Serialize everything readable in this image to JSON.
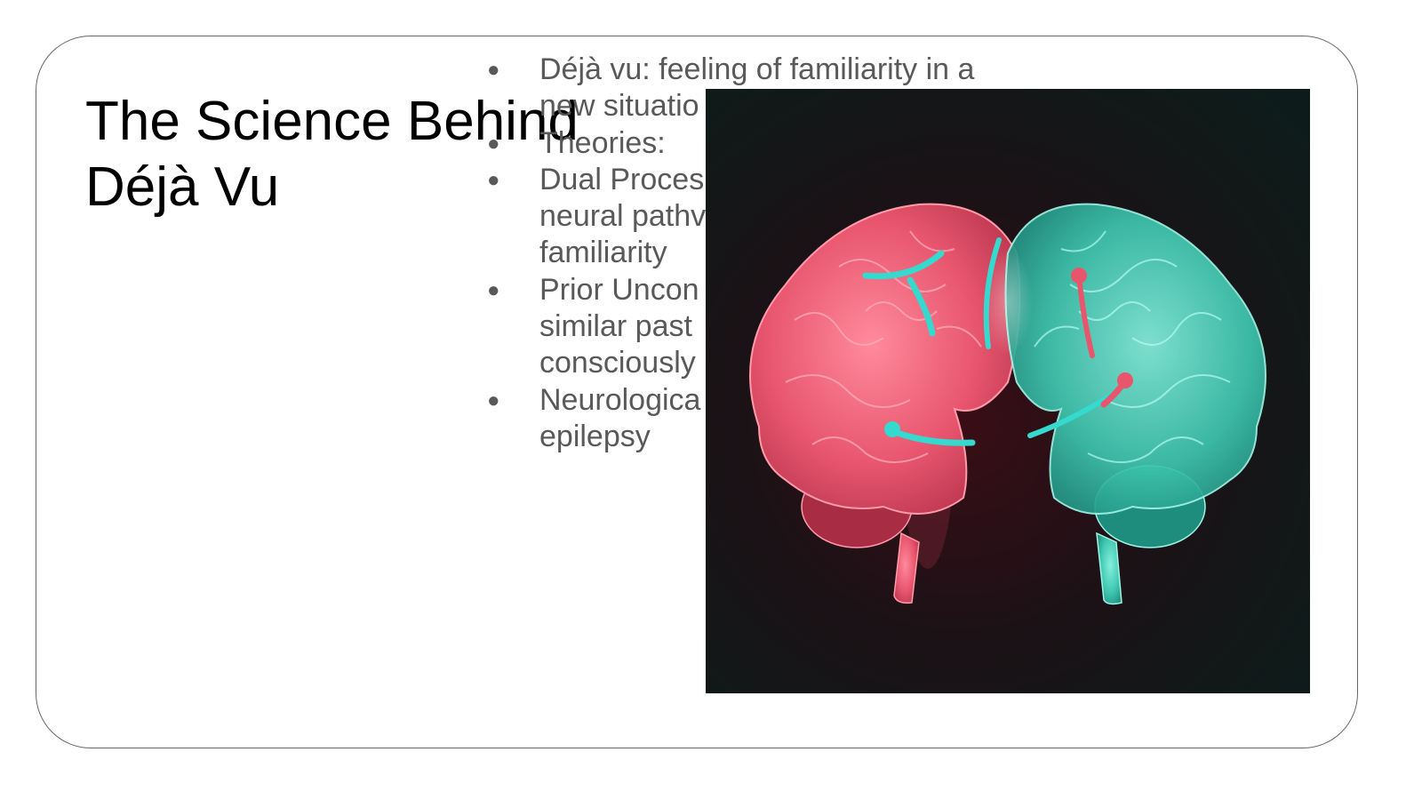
{
  "slide": {
    "title_lines": [
      "The Science Behind",
      "Déjà Vu"
    ],
    "bullets": [
      {
        "lines": [
          "Déjà vu: feeling of familiarity in a",
          "new situatio"
        ]
      },
      {
        "lines": [
          "Theories:"
        ]
      },
      {
        "lines": [
          "Dual Proces",
          "neural pathv",
          "familiarity"
        ]
      },
      {
        "lines": [
          "Prior Uncon",
          "similar past",
          "consciously"
        ]
      },
      {
        "lines": [
          "Neurologica",
          "epilepsy"
        ]
      }
    ],
    "bullet_glyph": "●"
  },
  "image": {
    "subject": "brain-illustration-two-hemispheres",
    "colors": {
      "left_hemisphere": "#e8566e",
      "right_hemisphere": "#3fc7b0",
      "background_dark": "#0d1c1a",
      "background_red_glow": "#3a0d16",
      "highlight_cyan": "#35d9cd"
    }
  },
  "theme": {
    "text_primary": "#000000",
    "text_secondary": "#595959",
    "frame_border": "#666666"
  }
}
